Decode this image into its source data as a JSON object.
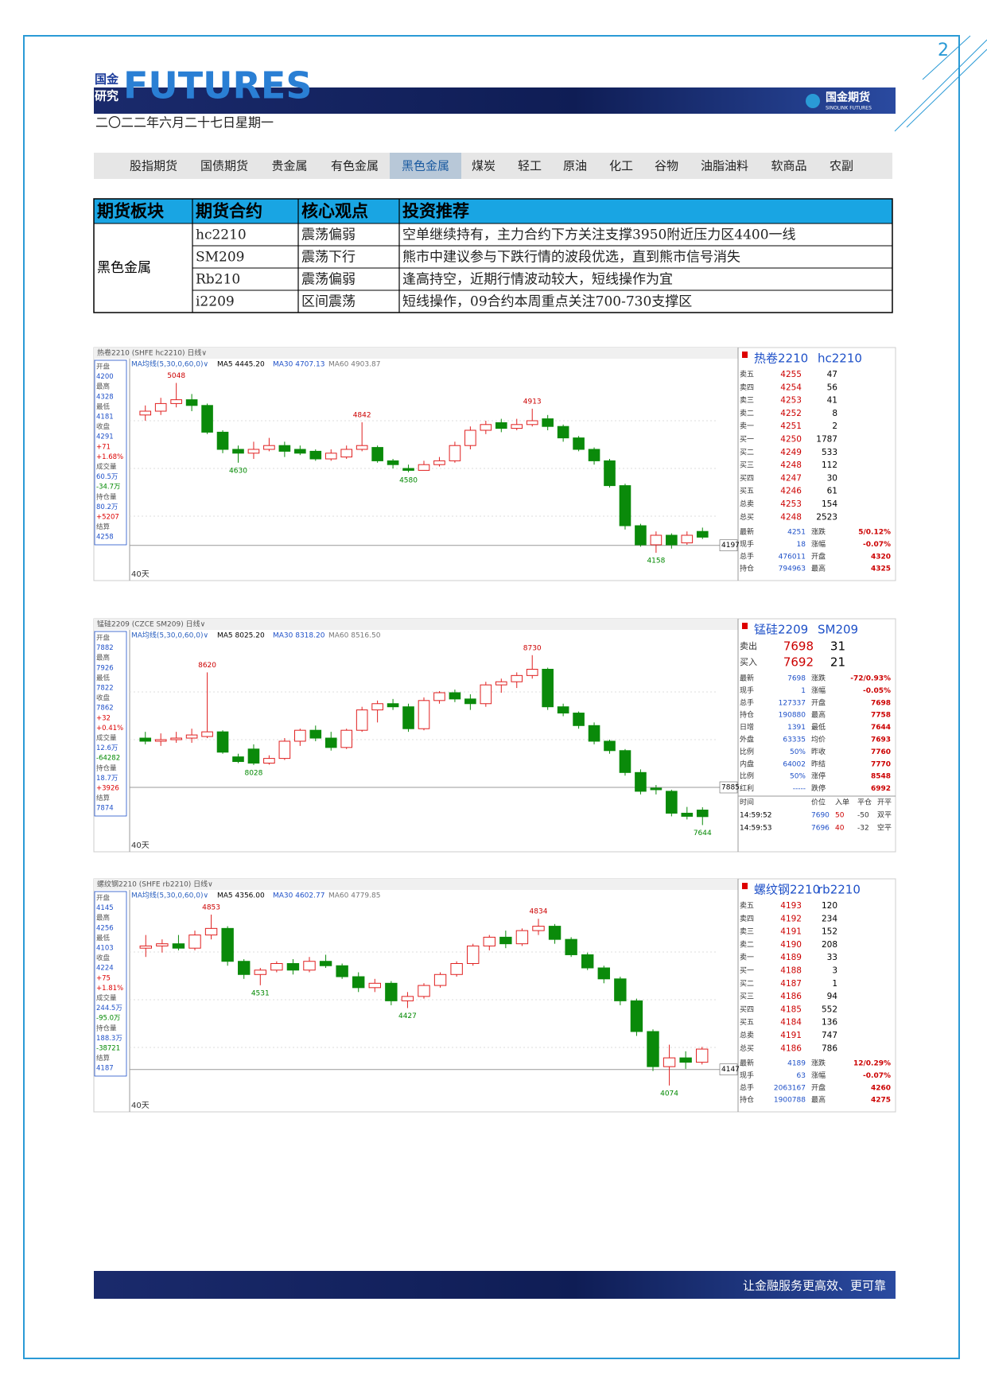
{
  "header": {
    "page_number": "2",
    "logo_cn": [
      "国金",
      "研究"
    ],
    "logo_en": "FUTURES",
    "brand": "国金期货",
    "brand_en": "SINOLINK FUTURES",
    "date": "二〇二二年六月二十七日星期一"
  },
  "nav": {
    "tabs": [
      "股指期货",
      "国债期货",
      "贵金属",
      "有色金属",
      "黑色金属",
      "煤炭",
      "轻工",
      "原油",
      "化工",
      "谷物",
      "油脂油料",
      "软商品",
      "农副"
    ],
    "active": 4
  },
  "table": {
    "headers": [
      "期货板块",
      "期货合约",
      "核心观点",
      "投资推荐"
    ],
    "sector": "黑色金属",
    "rows": [
      [
        "hc2210",
        "震荡偏弱",
        "空单继续持有，主力合约下方关注支撑3950附近压力区4400一线"
      ],
      [
        "SM209",
        "震荡下行",
        "熊市中建议参与下跌行情的波段优选，直到熊市信号消失"
      ],
      [
        "Rb210",
        "震荡偏弱",
        "逢高持空，近期行情波动较大，短线操作为宜"
      ],
      [
        "i2209",
        "区间震荡",
        "短线操作，09合约本周重点关注700-730支撑区"
      ]
    ]
  },
  "charts": [
    {
      "strip": "热卷2210 (SHFE hc2210)  日线∨",
      "ma_label": "MA均线(5,30,0,60,0)∨",
      "ma": [
        "MA5 4445.20",
        "MA30 4707.13",
        "MA60 4903.87"
      ],
      "period": "40天",
      "title": "热卷2210",
      "code": "hc2210",
      "ylim": [
        4100,
        5100
      ],
      "ref_line": 4197,
      "annotations": [
        5048,
        4630,
        4842,
        4580,
        4913,
        4158
      ],
      "info": [
        "开盘",
        "4200",
        "最高",
        "4328",
        "最低",
        "4181",
        "收盘",
        "4291",
        "+71",
        "+1.68%",
        "成交量",
        "60.5万",
        "-34.7万",
        "持仓量",
        "80.2万",
        "+5207",
        "结算",
        "4258"
      ],
      "candles": [
        [
          4880,
          4930,
          4850,
          4900
        ],
        [
          4900,
          4970,
          4880,
          4940
        ],
        [
          4940,
          5048,
          4920,
          4960
        ],
        [
          4960,
          4990,
          4900,
          4930
        ],
        [
          4930,
          4940,
          4780,
          4790
        ],
        [
          4790,
          4800,
          4680,
          4700
        ],
        [
          4700,
          4720,
          4630,
          4680
        ],
        [
          4680,
          4740,
          4650,
          4700
        ],
        [
          4700,
          4760,
          4690,
          4720
        ],
        [
          4720,
          4740,
          4660,
          4690
        ],
        [
          4700,
          4720,
          4670,
          4680
        ],
        [
          4690,
          4700,
          4640,
          4650
        ],
        [
          4650,
          4700,
          4640,
          4680
        ],
        [
          4660,
          4720,
          4650,
          4700
        ],
        [
          4700,
          4842,
          4690,
          4720
        ],
        [
          4710,
          4720,
          4630,
          4640
        ],
        [
          4640,
          4650,
          4600,
          4620
        ],
        [
          4600,
          4620,
          4580,
          4590
        ],
        [
          4590,
          4640,
          4590,
          4620
        ],
        [
          4620,
          4660,
          4610,
          4640
        ],
        [
          4640,
          4740,
          4630,
          4720
        ],
        [
          4720,
          4820,
          4700,
          4800
        ],
        [
          4800,
          4850,
          4780,
          4830
        ],
        [
          4840,
          4860,
          4790,
          4810
        ],
        [
          4810,
          4860,
          4800,
          4830
        ],
        [
          4830,
          4913,
          4820,
          4850
        ],
        [
          4860,
          4880,
          4800,
          4820
        ],
        [
          4820,
          4830,
          4740,
          4760
        ],
        [
          4760,
          4770,
          4690,
          4700
        ],
        [
          4700,
          4710,
          4620,
          4640
        ],
        [
          4640,
          4650,
          4500,
          4510
        ],
        [
          4510,
          4520,
          4280,
          4300
        ],
        [
          4300,
          4310,
          4190,
          4200
        ],
        [
          4200,
          4270,
          4158,
          4250
        ],
        [
          4250,
          4260,
          4180,
          4200
        ],
        [
          4210,
          4270,
          4200,
          4250
        ],
        [
          4270,
          4290,
          4230,
          4240
        ]
      ],
      "book": [
        [
          "卖五",
          4255,
          47
        ],
        [
          "卖四",
          4254,
          56
        ],
        [
          "卖三",
          4253,
          41
        ],
        [
          "卖二",
          4252,
          8
        ],
        [
          "卖一",
          4251,
          2
        ],
        [
          "买一",
          4250,
          1787
        ],
        [
          "买二",
          4249,
          533
        ],
        [
          "买三",
          4248,
          112
        ],
        [
          "买四",
          4247,
          30
        ],
        [
          "买五",
          4246,
          61
        ],
        [
          "总卖",
          4253,
          154
        ],
        [
          "总买",
          4248,
          2523
        ]
      ],
      "stats": [
        [
          "最新",
          4251,
          "涨跌",
          "5/0.12%"
        ],
        [
          "现手",
          18,
          "涨幅",
          "-0.07%"
        ],
        [
          "总手",
          476011,
          "开盘",
          4320
        ],
        [
          "持仓",
          794963,
          "最高",
          4325
        ]
      ]
    },
    {
      "strip": "锰硅2209 (CZCE SM209)  日线∨",
      "ma_label": "MA均线(5,30,0,60,0)∨",
      "ma": [
        "MA5 8025.20",
        "MA30 8318.20",
        "MA60 8516.50"
      ],
      "period": "40天",
      "title": "锰硅2209",
      "code": "SM209",
      "ylim": [
        7580,
        8800
      ],
      "ref_line": 7885,
      "annotations": [
        8620,
        8028,
        8730,
        7644
      ],
      "info": [
        "开盘",
        "7882",
        "最高",
        "7926",
        "最低",
        "7822",
        "收盘",
        "7862",
        "+32",
        "+0.41%",
        "成交量",
        "12.6万",
        "-64282",
        "持仓量",
        "18.7万",
        "+3926",
        "结算",
        "7874"
      ],
      "candles": [
        [
          8200,
          8240,
          8160,
          8180
        ],
        [
          8180,
          8230,
          8150,
          8190
        ],
        [
          8190,
          8240,
          8170,
          8200
        ],
        [
          8200,
          8260,
          8170,
          8220
        ],
        [
          8210,
          8620,
          8200,
          8240
        ],
        [
          8240,
          8250,
          8100,
          8110
        ],
        [
          8080,
          8100,
          8040,
          8050
        ],
        [
          8130,
          8160,
          8028,
          8040
        ],
        [
          8040,
          8090,
          8030,
          8070
        ],
        [
          8070,
          8200,
          8060,
          8180
        ],
        [
          8180,
          8260,
          8150,
          8250
        ],
        [
          8250,
          8280,
          8180,
          8200
        ],
        [
          8200,
          8240,
          8120,
          8140
        ],
        [
          8140,
          8260,
          8130,
          8250
        ],
        [
          8250,
          8400,
          8240,
          8380
        ],
        [
          8380,
          8440,
          8300,
          8420
        ],
        [
          8420,
          8450,
          8380,
          8400
        ],
        [
          8400,
          8420,
          8240,
          8260
        ],
        [
          8260,
          8460,
          8250,
          8440
        ],
        [
          8440,
          8500,
          8420,
          8490
        ],
        [
          8490,
          8510,
          8430,
          8450
        ],
        [
          8450,
          8480,
          8380,
          8420
        ],
        [
          8420,
          8560,
          8400,
          8540
        ],
        [
          8540,
          8580,
          8490,
          8560
        ],
        [
          8560,
          8620,
          8520,
          8600
        ],
        [
          8600,
          8730,
          8580,
          8640
        ],
        [
          8640,
          8650,
          8380,
          8400
        ],
        [
          8400,
          8420,
          8340,
          8360
        ],
        [
          8360,
          8370,
          8260,
          8280
        ],
        [
          8280,
          8300,
          8160,
          8180
        ],
        [
          8180,
          8190,
          8100,
          8120
        ],
        [
          8120,
          8130,
          7960,
          7980
        ],
        [
          7980,
          8000,
          7840,
          7860
        ],
        [
          7880,
          7900,
          7840,
          7870
        ],
        [
          7860,
          7870,
          7700,
          7720
        ],
        [
          7720,
          7760,
          7680,
          7700
        ],
        [
          7740,
          7758,
          7644,
          7698
        ]
      ],
      "book": [
        [
          "卖出",
          7698,
          31
        ],
        [
          "买入",
          7692,
          21
        ]
      ],
      "stats": [
        [
          "最新",
          7698,
          "涨跌",
          "-72/0.93%"
        ],
        [
          "现手",
          1,
          "涨幅",
          "-0.05%"
        ],
        [
          "总手",
          127337,
          "开盘",
          7698
        ],
        [
          "持仓",
          190880,
          "最高",
          7758
        ],
        [
          "日增",
          1391,
          "最低",
          7644
        ],
        [
          "外盘",
          63335,
          "均价",
          7693
        ],
        [
          "比例",
          "50%",
          "昨收",
          7760
        ],
        [
          "内盘",
          64002,
          "昨结",
          7770
        ],
        [
          "比例",
          "50%",
          "涨停",
          8548
        ],
        [
          "红利",
          "-----",
          "跌停",
          6992
        ]
      ],
      "tick_header": [
        "时间",
        "价位",
        "入单",
        "平仓",
        "开平"
      ],
      "ticks": [
        [
          "14:59:52",
          7690,
          50,
          -50,
          "双平"
        ],
        [
          "14:59:53",
          7696,
          40,
          -32,
          "空平"
        ]
      ]
    },
    {
      "strip": "螺纹钢2210 (SHFE rb2210)  日线∨",
      "ma_label": "MA均线(5,30,0,60,0)∨",
      "ma": [
        "MA5 4356.00",
        "MA30 4602.77",
        "MA60 4779.85"
      ],
      "period": "40天",
      "title": "螺纹钢2210",
      "code": "rb2210",
      "ylim": [
        4030,
        4900
      ],
      "ref_line": 4147,
      "annotations": [
        4853,
        4531,
        4427,
        4834,
        4074
      ],
      "info": [
        "开盘",
        "4145",
        "最高",
        "4256",
        "最低",
        "4103",
        "收盘",
        "4224",
        "+75",
        "+1.81%",
        "成交量",
        "244.5万",
        "-95.0万",
        "持仓量",
        "188.3万",
        "-38721",
        "结算",
        "4187"
      ],
      "candles": [
        [
          4700,
          4760,
          4660,
          4710
        ],
        [
          4710,
          4740,
          4680,
          4720
        ],
        [
          4720,
          4760,
          4690,
          4700
        ],
        [
          4700,
          4780,
          4690,
          4760
        ],
        [
          4760,
          4853,
          4740,
          4790
        ],
        [
          4790,
          4800,
          4620,
          4640
        ],
        [
          4640,
          4650,
          4560,
          4580
        ],
        [
          4580,
          4610,
          4531,
          4600
        ],
        [
          4600,
          4640,
          4590,
          4630
        ],
        [
          4630,
          4650,
          4580,
          4600
        ],
        [
          4600,
          4660,
          4590,
          4640
        ],
        [
          4640,
          4670,
          4610,
          4620
        ],
        [
          4620,
          4630,
          4560,
          4570
        ],
        [
          4570,
          4590,
          4500,
          4520
        ],
        [
          4520,
          4560,
          4500,
          4540
        ],
        [
          4540,
          4550,
          4440,
          4460
        ],
        [
          4460,
          4500,
          4427,
          4480
        ],
        [
          4480,
          4540,
          4470,
          4530
        ],
        [
          4530,
          4590,
          4520,
          4580
        ],
        [
          4580,
          4640,
          4570,
          4630
        ],
        [
          4630,
          4720,
          4620,
          4710
        ],
        [
          4710,
          4760,
          4690,
          4750
        ],
        [
          4750,
          4780,
          4700,
          4720
        ],
        [
          4720,
          4790,
          4710,
          4780
        ],
        [
          4780,
          4834,
          4760,
          4800
        ],
        [
          4800,
          4810,
          4720,
          4740
        ],
        [
          4740,
          4750,
          4660,
          4670
        ],
        [
          4670,
          4680,
          4600,
          4610
        ],
        [
          4610,
          4620,
          4540,
          4560
        ],
        [
          4560,
          4570,
          4440,
          4460
        ],
        [
          4460,
          4470,
          4300,
          4320
        ],
        [
          4320,
          4330,
          4140,
          4160
        ],
        [
          4160,
          4260,
          4074,
          4200
        ],
        [
          4200,
          4230,
          4150,
          4180
        ],
        [
          4180,
          4250,
          4170,
          4240
        ]
      ],
      "book": [
        [
          "卖五",
          4193,
          120
        ],
        [
          "卖四",
          4192,
          234
        ],
        [
          "卖三",
          4191,
          152
        ],
        [
          "卖二",
          4190,
          208
        ],
        [
          "卖一",
          4189,
          33
        ],
        [
          "买一",
          4188,
          3
        ],
        [
          "买二",
          4187,
          1
        ],
        [
          "买三",
          4186,
          94
        ],
        [
          "买四",
          4185,
          552
        ],
        [
          "买五",
          4184,
          136
        ],
        [
          "总卖",
          4191,
          747
        ],
        [
          "总买",
          4186,
          786
        ]
      ],
      "stats": [
        [
          "最新",
          4189,
          "涨跌",
          "12/0.29%"
        ],
        [
          "现手",
          63,
          "涨幅",
          "-0.07%"
        ],
        [
          "总手",
          2063167,
          "开盘",
          4260
        ],
        [
          "持仓",
          1900788,
          "最高",
          4275
        ]
      ]
    }
  ],
  "footer": {
    "slogan": "让金融服务更高效、更可靠"
  }
}
